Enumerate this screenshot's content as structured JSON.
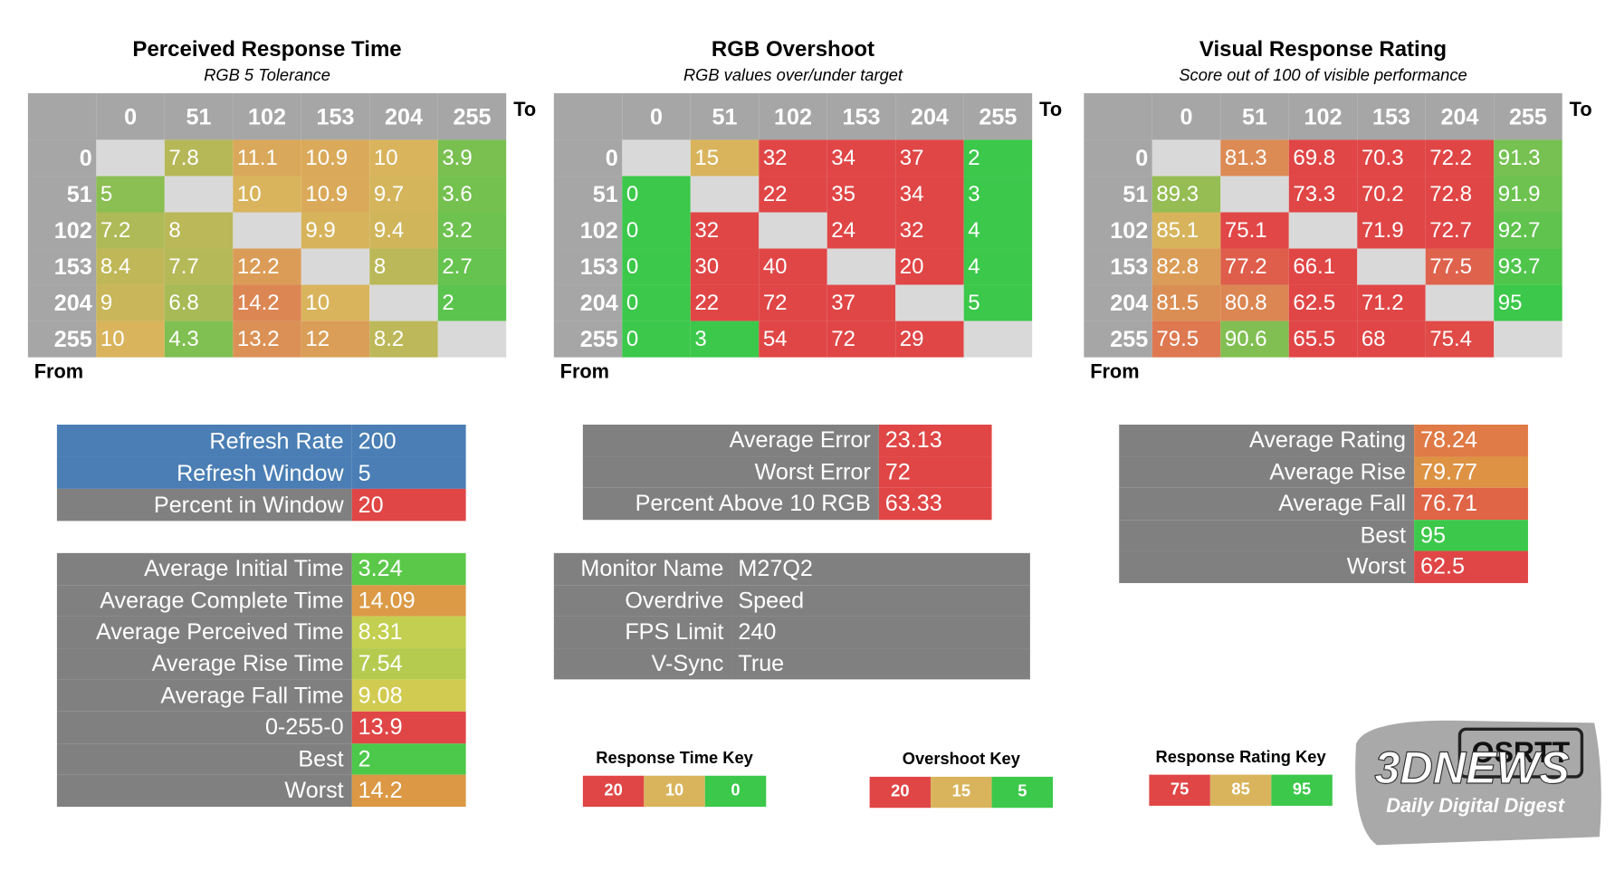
{
  "matrices": [
    {
      "title": "Perceived Response Time",
      "subtitle": "RGB 5 Tolerance",
      "to_label": "To",
      "from_label": "From",
      "columns": [
        0,
        51,
        102,
        153,
        204,
        255
      ],
      "rows": [
        0,
        51,
        102,
        153,
        204,
        255
      ],
      "values": [
        [
          null,
          7.8,
          11.1,
          10.9,
          10,
          3.9
        ],
        [
          5,
          null,
          10,
          10.9,
          9.7,
          3.6
        ],
        [
          7.2,
          8,
          null,
          9.9,
          9.4,
          3.2
        ],
        [
          8.4,
          7.7,
          12.2,
          null,
          8,
          2.7
        ],
        [
          9,
          6.8,
          14.2,
          10,
          null,
          2
        ],
        [
          10,
          4.3,
          13.2,
          12,
          8.2,
          null
        ]
      ]
    },
    {
      "title": "RGB Overshoot",
      "subtitle": "RGB values over/under target",
      "to_label": "To",
      "from_label": "From",
      "columns": [
        0,
        51,
        102,
        153,
        204,
        255
      ],
      "rows": [
        0,
        51,
        102,
        153,
        204,
        255
      ],
      "values": [
        [
          null,
          15,
          32,
          34,
          37,
          2
        ],
        [
          0,
          null,
          22,
          35,
          34,
          3
        ],
        [
          0,
          32,
          null,
          24,
          32,
          4
        ],
        [
          0,
          30,
          40,
          null,
          20,
          4
        ],
        [
          0,
          22,
          72,
          37,
          null,
          5
        ],
        [
          0,
          3,
          54,
          72,
          29,
          null
        ]
      ]
    },
    {
      "title": "Visual Response Rating",
      "subtitle": "Score out of 100 of visible performance",
      "to_label": "To",
      "from_label": "From",
      "columns": [
        0,
        51,
        102,
        153,
        204,
        255
      ],
      "rows": [
        0,
        51,
        102,
        153,
        204,
        255
      ],
      "values": [
        [
          null,
          81.3,
          69.8,
          70.3,
          72.2,
          91.3
        ],
        [
          89.3,
          null,
          73.3,
          70.2,
          72.8,
          91.9
        ],
        [
          85.1,
          75.1,
          null,
          71.9,
          72.7,
          92.7
        ],
        [
          82.8,
          77.2,
          66.1,
          null,
          77.5,
          93.7
        ],
        [
          81.5,
          80.8,
          62.5,
          71.2,
          null,
          95
        ],
        [
          79.5,
          90.6,
          65.5,
          68,
          75.4,
          null
        ]
      ]
    }
  ],
  "summaries": [
    {
      "rows": [
        {
          "label": "Refresh Rate",
          "value": 200,
          "color": "#4a7eb4",
          "label_color": "#4a7eb4"
        },
        {
          "label": "Refresh Window",
          "value": 5,
          "color": "#4a7eb4",
          "label_color": "#4a7eb4"
        },
        {
          "label": "Percent in Window",
          "value": 20,
          "color": "#e04646",
          "label_color": "#808080"
        }
      ]
    },
    {
      "rows": [
        {
          "label": "Average Initial Time",
          "value": 3.24,
          "color": "#5cc84a",
          "label_color": "#808080"
        },
        {
          "label": "Average Complete Time",
          "value": 14.09,
          "color": "#dc9a46",
          "label_color": "#808080"
        },
        {
          "label": "Average Perceived Time",
          "value": 8.31,
          "color": "#c3cf50",
          "label_color": "#808080"
        },
        {
          "label": "Average Rise Time",
          "value": 7.54,
          "color": "#b4cb50",
          "label_color": "#808080"
        },
        {
          "label": "Average Fall Time",
          "value": 9.08,
          "color": "#d2cb52",
          "label_color": "#808080"
        },
        {
          "label": "0-255-0",
          "value": 13.9,
          "color": "#e04646",
          "label_color": "#808080"
        },
        {
          "label": "Best",
          "value": 2,
          "color": "#4cc84a",
          "label_color": "#808080"
        },
        {
          "label": "Worst",
          "value": 14.2,
          "color": "#dc9844",
          "label_color": "#808080"
        }
      ]
    },
    {
      "rows": [
        {
          "label": "Average Error",
          "value": 23.13,
          "color": "#e04646",
          "label_color": "#808080"
        },
        {
          "label": "Worst Error",
          "value": 72,
          "color": "#e04646",
          "label_color": "#808080"
        },
        {
          "label": "Percent Above 10 RGB",
          "value": 63.33,
          "color": "#e04646",
          "label_color": "#808080"
        }
      ]
    },
    {
      "rows": [
        {
          "label": "Monitor Name",
          "value": "M27Q2",
          "color": "#808080",
          "label_color": "#808080"
        },
        {
          "label": "Overdrive",
          "value": "Speed",
          "color": "#808080",
          "label_color": "#808080"
        },
        {
          "label": "FPS Limit",
          "value": 240,
          "color": "#808080",
          "label_color": "#808080"
        },
        {
          "label": "V-Sync",
          "value": "True",
          "color": "#808080",
          "label_color": "#808080"
        }
      ]
    },
    {
      "rows": [
        {
          "label": "Average Rating",
          "value": 78.24,
          "color": "#e07a46",
          "label_color": "#808080"
        },
        {
          "label": "Average Rise",
          "value": 79.77,
          "color": "#dd9244",
          "label_color": "#808080"
        },
        {
          "label": "Average Fall",
          "value": 76.71,
          "color": "#e06446",
          "label_color": "#808080"
        },
        {
          "label": "Best",
          "value": 95,
          "color": "#3cc84a",
          "label_color": "#808080"
        },
        {
          "label": "Worst",
          "value": 62.5,
          "color": "#e04646",
          "label_color": "#808080"
        }
      ]
    }
  ],
  "keys": [
    {
      "title": "Response Time Key",
      "stops": [
        {
          "value": 20,
          "color": "#e04646"
        },
        {
          "value": 10,
          "color": "#d9b45c"
        },
        {
          "value": 0,
          "color": "#3cc84a"
        }
      ]
    },
    {
      "title": "Overshoot Key",
      "stops": [
        {
          "value": 20,
          "color": "#e04646"
        },
        {
          "value": 15,
          "color": "#d9b45c"
        },
        {
          "value": 5,
          "color": "#3cc84a"
        }
      ]
    },
    {
      "title": "Response Rating Key",
      "stops": [
        {
          "value": 75,
          "color": "#e04646"
        },
        {
          "value": 85,
          "color": "#d9b45c"
        },
        {
          "value": 95,
          "color": "#3cc84a"
        }
      ]
    }
  ],
  "empty_color": "#d9d9d9",
  "watermark": {
    "brand": "3DNEWS",
    "tagline": "Daily Digital Digest",
    "overlay": "OSRTT"
  }
}
